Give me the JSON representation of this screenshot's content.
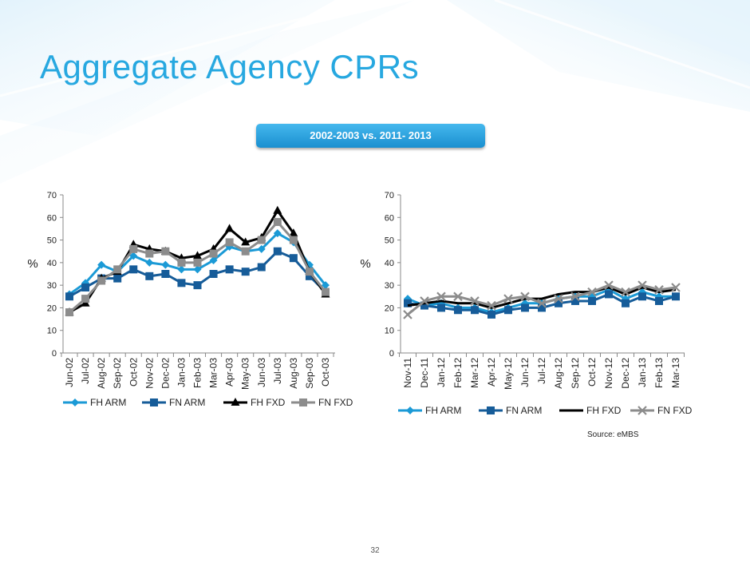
{
  "slide": {
    "title": "Aggregate Agency CPRs",
    "subtitle": "2002-2003 vs. 2011- 2013",
    "source": "Source: eMBS",
    "page_number": "32"
  },
  "colors": {
    "title": "#27a8e0",
    "pill": "#2ea3e3",
    "FH ARM": "#1b9ad6",
    "FN ARM": "#165c99",
    "FH FXD": "#000000",
    "FN FXD": "#8c8c8c"
  },
  "chart_data": [
    {
      "type": "line",
      "ylabel": "%",
      "ylim": [
        0,
        70
      ],
      "yticks": [
        0,
        10,
        20,
        30,
        40,
        50,
        60,
        70
      ],
      "grid": false,
      "legend": "bottom",
      "x": [
        "Jun-02",
        "Jul-02",
        "Aug-02",
        "Sep-02",
        "Oct-02",
        "Nov-02",
        "Dec-02",
        "Jan-03",
        "Feb-03",
        "Mar-03",
        "Apr-03",
        "May-03",
        "Jun-03",
        "Jul-03",
        "Aug-03",
        "Sep-03",
        "Oct-03"
      ],
      "series": [
        {
          "name": "FH ARM",
          "marker": "diamond",
          "values": [
            26,
            31,
            39,
            36,
            43,
            40,
            39,
            37,
            37,
            41,
            47,
            45,
            46,
            53,
            49,
            39,
            30
          ]
        },
        {
          "name": "FN ARM",
          "marker": "square",
          "values": [
            25,
            29,
            33,
            33,
            37,
            34,
            35,
            31,
            30,
            35,
            37,
            36,
            38,
            45,
            42,
            34,
            27
          ]
        },
        {
          "name": "FH FXD",
          "marker": "triangle",
          "values": [
            18,
            22,
            33,
            36,
            48,
            46,
            45,
            42,
            43,
            46,
            55,
            49,
            51,
            63,
            53,
            36,
            26
          ]
        },
        {
          "name": "FN FXD",
          "marker": "square",
          "values": [
            18,
            24,
            32,
            37,
            46,
            44,
            45,
            40,
            40,
            44,
            49,
            45,
            50,
            58,
            50,
            36,
            27
          ]
        }
      ]
    },
    {
      "type": "line",
      "ylabel": "%",
      "ylim": [
        0,
        70
      ],
      "yticks": [
        0,
        10,
        20,
        30,
        40,
        50,
        60,
        70
      ],
      "grid": false,
      "legend": "bottom",
      "x": [
        "Nov-11",
        "Dec-11",
        "Jan-12",
        "Feb-12",
        "Mar-12",
        "Apr-12",
        "May-12",
        "Jun-12",
        "Jul-12",
        "Aug-12",
        "Sep-12",
        "Oct-12",
        "Nov-12",
        "Dec-12",
        "Jan-13",
        "Feb-13",
        "Mar-13"
      ],
      "series": [
        {
          "name": "FH ARM",
          "marker": "diamond",
          "values": [
            24,
            21,
            22,
            20,
            20,
            18,
            20,
            22,
            22,
            24,
            25,
            25,
            28,
            24,
            27,
            25,
            25
          ]
        },
        {
          "name": "FN ARM",
          "marker": "square",
          "values": [
            22,
            21,
            20,
            19,
            19,
            17,
            19,
            20,
            20,
            22,
            23,
            23,
            26,
            22,
            25,
            23,
            25
          ]
        },
        {
          "name": "FH FXD",
          "marker": "none",
          "values": [
            21,
            22,
            23,
            22,
            22,
            20,
            22,
            24,
            24,
            26,
            27,
            27,
            29,
            26,
            29,
            27,
            28
          ]
        },
        {
          "name": "FN FXD",
          "marker": "x",
          "values": [
            17,
            23,
            25,
            25,
            23,
            21,
            24,
            25,
            22,
            24,
            25,
            27,
            30,
            27,
            30,
            28,
            29
          ]
        }
      ]
    }
  ]
}
